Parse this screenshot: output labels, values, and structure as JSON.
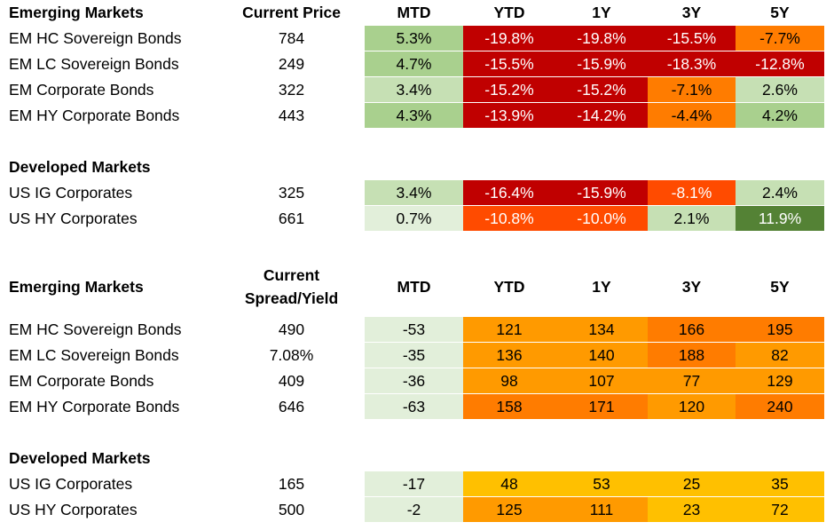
{
  "columns": [
    "MTD",
    "YTD",
    "1Y",
    "3Y",
    "5Y"
  ],
  "colors": {
    "green_light": "#e2efda",
    "green_mid": "#c6e0b4",
    "green": "#a9d08e",
    "green_dark": "#548235",
    "red_dark": "#c00000",
    "red": "#e41a1c",
    "orange_red": "#ff4b00",
    "orange": "#ff7c00",
    "orange_light": "#ff9a00",
    "amber": "#ffc000"
  },
  "returns": {
    "em_header": "Emerging Markets",
    "price_header": "Current Price",
    "em_rows": [
      {
        "name": "EM HC Sovereign Bonds",
        "price": "784",
        "vals": [
          "5.3%",
          "-19.8%",
          "-19.8%",
          "-15.5%",
          "-7.7%"
        ],
        "bg": [
          "#a9d08e",
          "#c00000",
          "#c00000",
          "#c00000",
          "#ff7c00"
        ]
      },
      {
        "name": "EM LC Sovereign Bonds",
        "price": "249",
        "vals": [
          "4.7%",
          "-15.5%",
          "-15.9%",
          "-18.3%",
          "-12.8%"
        ],
        "bg": [
          "#a9d08e",
          "#c00000",
          "#c00000",
          "#c00000",
          "#c00000"
        ]
      },
      {
        "name": "EM Corporate Bonds",
        "price": "322",
        "vals": [
          "3.4%",
          "-15.2%",
          "-15.2%",
          "-7.1%",
          "2.6%"
        ],
        "bg": [
          "#c6e0b4",
          "#c00000",
          "#c00000",
          "#ff7c00",
          "#c6e0b4"
        ]
      },
      {
        "name": "EM HY Corporate Bonds",
        "price": "443",
        "vals": [
          "4.3%",
          "-13.9%",
          "-14.2%",
          "-4.4%",
          "4.2%"
        ],
        "bg": [
          "#a9d08e",
          "#c00000",
          "#c00000",
          "#ff7c00",
          "#a9d08e"
        ]
      }
    ],
    "dm_header": "Developed Markets",
    "dm_rows": [
      {
        "name": "US IG Corporates",
        "price": "325",
        "vals": [
          "3.4%",
          "-16.4%",
          "-15.9%",
          "-8.1%",
          "2.4%"
        ],
        "bg": [
          "#c6e0b4",
          "#c00000",
          "#c00000",
          "#ff4b00",
          "#c6e0b4"
        ]
      },
      {
        "name": "US HY Corporates",
        "price": "661",
        "vals": [
          "0.7%",
          "-10.8%",
          "-10.0%",
          "2.1%",
          "11.9%"
        ],
        "bg": [
          "#e2efda",
          "#ff4b00",
          "#ff4b00",
          "#c6e0b4",
          "#548235"
        ]
      }
    ]
  },
  "spreads": {
    "em_header": "Emerging Markets",
    "spread_header_line1": "Current",
    "spread_header_line2": "Spread/Yield",
    "em_rows": [
      {
        "name": "EM HC Sovereign Bonds",
        "price": "490",
        "vals": [
          "-53",
          "121",
          "134",
          "166",
          "195"
        ],
        "bg": [
          "#e2efda",
          "#ff9a00",
          "#ff9a00",
          "#ff7c00",
          "#ff7c00"
        ]
      },
      {
        "name": "EM LC Sovereign Bonds",
        "price": "7.08%",
        "vals": [
          "-35",
          "136",
          "140",
          "188",
          "82"
        ],
        "bg": [
          "#e2efda",
          "#ff9a00",
          "#ff9a00",
          "#ff7c00",
          "#ff9a00"
        ]
      },
      {
        "name": "EM Corporate Bonds",
        "price": "409",
        "vals": [
          "-36",
          "98",
          "107",
          "77",
          "129"
        ],
        "bg": [
          "#e2efda",
          "#ff9a00",
          "#ff9a00",
          "#ff9a00",
          "#ff9a00"
        ]
      },
      {
        "name": "EM HY Corporate Bonds",
        "price": "646",
        "vals": [
          "-63",
          "158",
          "171",
          "120",
          "240"
        ],
        "bg": [
          "#e2efda",
          "#ff7c00",
          "#ff7c00",
          "#ff9a00",
          "#ff7c00"
        ]
      }
    ],
    "dm_header": "Developed Markets",
    "dm_rows": [
      {
        "name": "US IG Corporates",
        "price": "165",
        "vals": [
          "-17",
          "48",
          "53",
          "25",
          "35"
        ],
        "bg": [
          "#e2efda",
          "#ffc000",
          "#ffc000",
          "#ffc000",
          "#ffc000"
        ]
      },
      {
        "name": "US HY Corporates",
        "price": "500",
        "vals": [
          "-2",
          "125",
          "111",
          "23",
          "72"
        ],
        "bg": [
          "#e2efda",
          "#ff9a00",
          "#ff9a00",
          "#ffc000",
          "#ffc000"
        ]
      }
    ]
  }
}
